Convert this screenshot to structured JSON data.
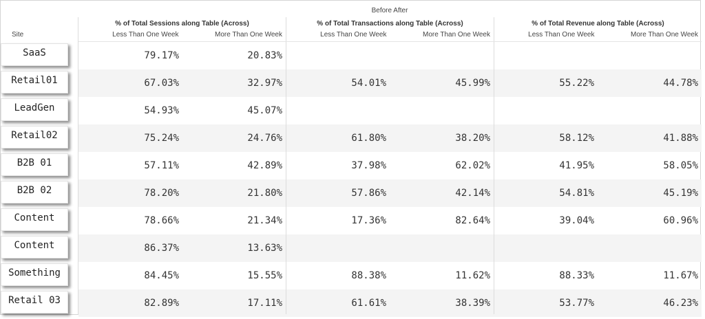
{
  "table": {
    "top_header": "Before After",
    "row_header": "Site",
    "groups": [
      {
        "title": "% of Total Sessions along Table (Across)",
        "sub": [
          "Less Than One Week",
          "More Than One Week"
        ]
      },
      {
        "title": "% of Total Transactions along Table (Across)",
        "sub": [
          "Less Than One Week",
          "More Than One Week"
        ]
      },
      {
        "title": "% of Total Revenue along Table (Across)",
        "sub": [
          "Less Than One Week",
          "More Than One Week"
        ]
      }
    ],
    "rows": [
      {
        "site": "SaaS",
        "values": [
          "79.17%",
          "20.83%",
          "",
          "",
          "",
          ""
        ]
      },
      {
        "site": "Retail01",
        "values": [
          "67.03%",
          "32.97%",
          "54.01%",
          "45.99%",
          "55.22%",
          "44.78%"
        ]
      },
      {
        "site": "LeadGen",
        "values": [
          "54.93%",
          "45.07%",
          "",
          "",
          "",
          ""
        ]
      },
      {
        "site": "Retail02",
        "values": [
          "75.24%",
          "24.76%",
          "61.80%",
          "38.20%",
          "58.12%",
          "41.88%"
        ]
      },
      {
        "site": "B2B 01",
        "values": [
          "57.11%",
          "42.89%",
          "37.98%",
          "62.02%",
          "41.95%",
          "58.05%"
        ]
      },
      {
        "site": "B2B 02",
        "values": [
          "78.20%",
          "21.80%",
          "57.86%",
          "42.14%",
          "54.81%",
          "45.19%"
        ]
      },
      {
        "site": "Content",
        "values": [
          "78.66%",
          "21.34%",
          "17.36%",
          "82.64%",
          "39.04%",
          "60.96%"
        ]
      },
      {
        "site": "Content",
        "values": [
          "86.37%",
          "13.63%",
          "",
          "",
          "",
          ""
        ]
      },
      {
        "site": "Something",
        "values": [
          "84.45%",
          "15.55%",
          "88.38%",
          "11.62%",
          "88.33%",
          "11.67%"
        ]
      },
      {
        "site": "Retail 03",
        "values": [
          "82.89%",
          "17.11%",
          "61.61%",
          "38.39%",
          "53.77%",
          "46.23%"
        ]
      }
    ]
  }
}
